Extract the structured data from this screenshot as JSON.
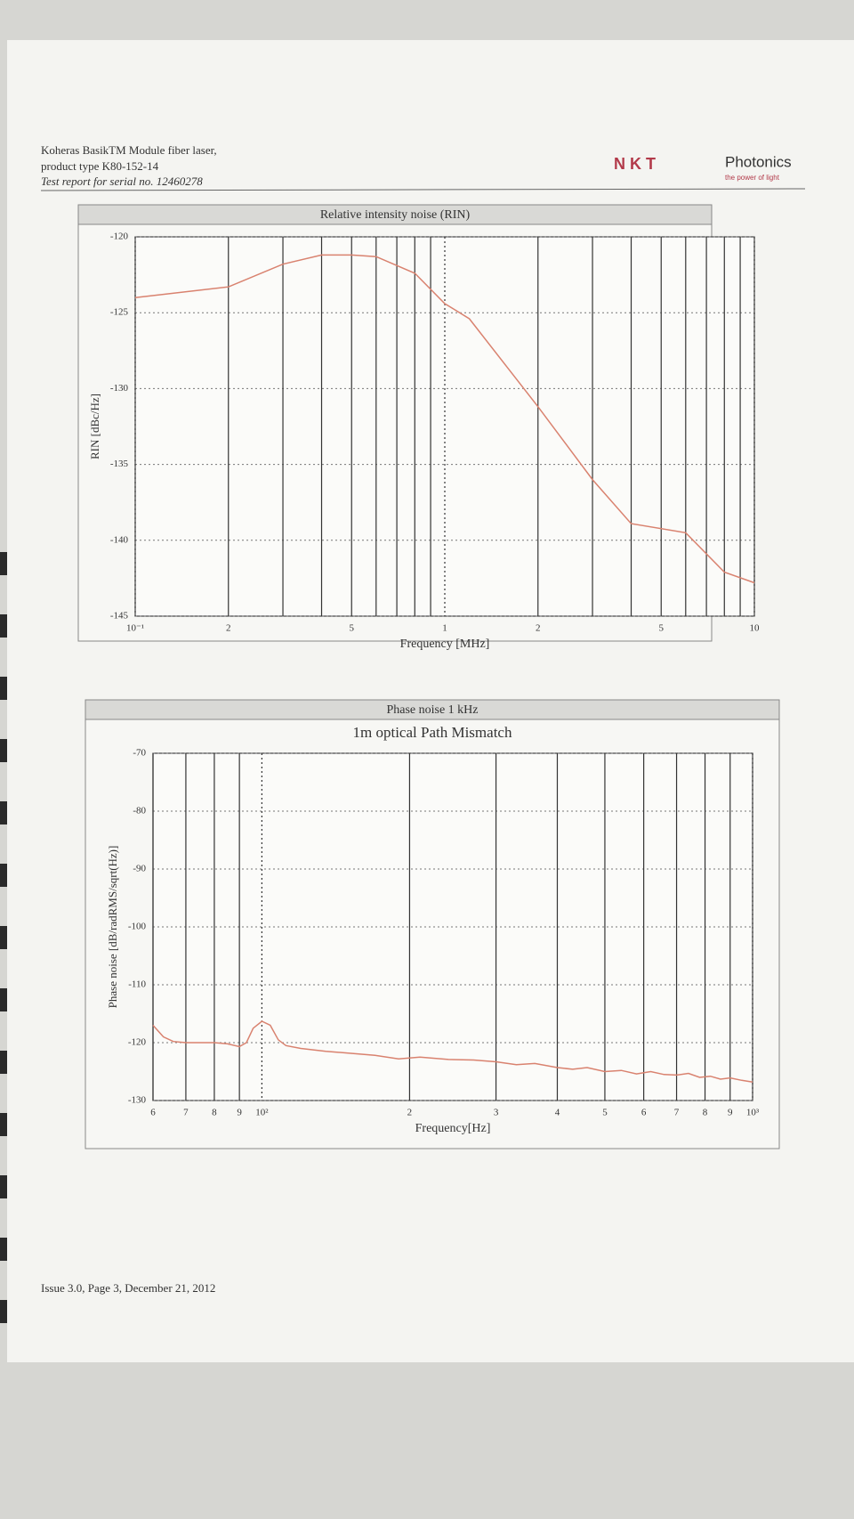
{
  "header": {
    "lines": [
      "Koheras BasikTM Module fiber laser,",
      "product type K80-152-14",
      "Test report for serial no. 12460278"
    ]
  },
  "logo": {
    "mark": "N K T",
    "name": "Photonics",
    "tagline": "the power of light"
  },
  "footer": "Issue 3.0, Page 3, December 21, 2012",
  "chart_data": [
    {
      "type": "line",
      "title": "Relative intensity noise (RIN)",
      "x_label": "Frequency [MHz]",
      "y_label": "RIN [dBc/Hz]",
      "xscale": "log",
      "x": [
        0.1,
        0.2,
        0.3,
        0.4,
        0.5,
        0.6,
        0.8,
        1,
        1.2,
        2,
        3,
        4,
        6,
        8,
        10
      ],
      "values": [
        -124,
        -123.3,
        -121.8,
        -121.2,
        -121.2,
        -121.3,
        -122.4,
        -124.4,
        -125.4,
        -131.2,
        -136,
        -138.9,
        -139.5,
        -142.1,
        -142.8
      ],
      "color": "#d9826f",
      "xlim": [
        0.1,
        10
      ],
      "ylim": [
        -145,
        -120
      ],
      "xticks": [
        {
          "value": 0.1,
          "label": "10⁻¹"
        },
        {
          "value": 0.2,
          "label": "2"
        },
        {
          "value": 0.5,
          "label": "5"
        },
        1,
        2,
        5,
        10
      ],
      "x_minor_grid": [
        0.3,
        0.4,
        0.6,
        0.7,
        0.8,
        0.9,
        3,
        4,
        6,
        7,
        8,
        9
      ],
      "yticks": [
        -145,
        -140,
        -135,
        -130,
        -125,
        -120
      ],
      "grid": true
    },
    {
      "type": "line",
      "title": "Phase noise 1 kHz",
      "subtitle": "1m optical Path Mismatch",
      "x_label": "Frequency[Hz]",
      "y_label": "Phase noise [dB/radRMS/sqrt(Hz)]",
      "xscale": "log",
      "x": [
        60,
        63,
        66,
        70,
        75,
        80,
        85,
        90,
        93,
        96,
        100,
        104,
        108,
        112,
        120,
        135,
        150,
        170,
        190,
        210,
        240,
        270,
        300,
        330,
        360,
        400,
        430,
        460,
        500,
        540,
        580,
        620,
        660,
        700,
        740,
        780,
        820,
        860,
        900,
        950,
        1000
      ],
      "values": [
        -117,
        -119,
        -119.8,
        -120,
        -120,
        -120,
        -120.2,
        -120.7,
        -120,
        -117.5,
        -116.3,
        -117,
        -119.5,
        -120.5,
        -121,
        -121.5,
        -121.8,
        -122.2,
        -122.8,
        -122.5,
        -122.9,
        -123,
        -123.3,
        -123.8,
        -123.6,
        -124.3,
        -124.6,
        -124.3,
        -125,
        -124.8,
        -125.4,
        -125,
        -125.5,
        -125.6,
        -125.3,
        -126,
        -125.8,
        -126.3,
        -126.1,
        -126.5,
        -126.8
      ],
      "color": "#d9826f",
      "xlim": [
        60,
        1000
      ],
      "ylim": [
        -130,
        -70
      ],
      "xticks": [
        {
          "value": 60,
          "label": "6"
        },
        {
          "value": 70,
          "label": "7"
        },
        {
          "value": 80,
          "label": "8"
        },
        {
          "value": 90,
          "label": "9"
        },
        {
          "value": 100,
          "label": "10²"
        },
        {
          "value": 200,
          "label": "2"
        },
        {
          "value": 300,
          "label": "3"
        },
        {
          "value": 400,
          "label": "4"
        },
        {
          "value": 500,
          "label": "5"
        },
        {
          "value": 600,
          "label": "6"
        },
        {
          "value": 700,
          "label": "7"
        },
        {
          "value": 800,
          "label": "8"
        },
        {
          "value": 900,
          "label": "9"
        },
        {
          "value": 1000,
          "label": "10³"
        }
      ],
      "yticks": [
        -130,
        -120,
        -110,
        -100,
        -90,
        -80,
        -70
      ],
      "grid": true
    }
  ]
}
